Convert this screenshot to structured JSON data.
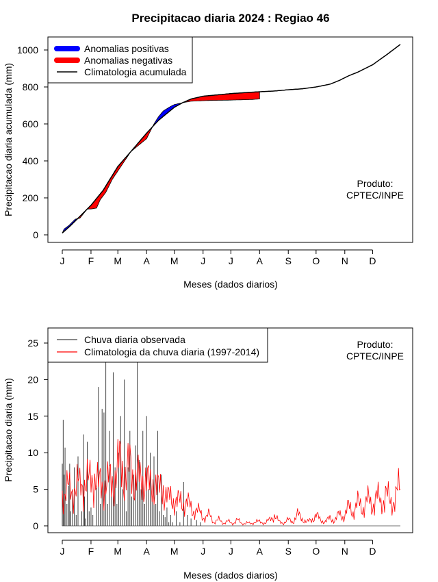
{
  "chart_data": [
    {
      "type": "area",
      "title": "Precipitacao diaria 2024 : Regiao 46",
      "xlabel": "Meses (dados diarios)",
      "ylabel": "Precipitacao diaria acumulada (mm)",
      "x_ticks": [
        "J",
        "F",
        "M",
        "A",
        "M",
        "J",
        "J",
        "A",
        "S",
        "O",
        "N",
        "D"
      ],
      "x_tick_days": [
        1,
        32,
        61,
        92,
        122,
        153,
        183,
        214,
        245,
        275,
        306,
        336
      ],
      "ylim": [
        0,
        1000
      ],
      "y_ticks": [
        0,
        200,
        400,
        600,
        800,
        1000
      ],
      "xlim_days": [
        1,
        366
      ],
      "legend": {
        "position": "top-left",
        "positive": "Anomalias positivas",
        "negative": "Anomalias negativas",
        "climatology": "Climatologia acumulada"
      },
      "colors": {
        "positive": "#0000ff",
        "negative": "#ff0000",
        "climatology": "#000000"
      },
      "product_label": [
        "Produto:",
        "CPTEC/INPE"
      ],
      "climatology_points": {
        "day": [
          1,
          10,
          20,
          32,
          45,
          61,
          75,
          92,
          105,
          122,
          131,
          140,
          153,
          170,
          183,
          200,
          214,
          230,
          245,
          260,
          275,
          290,
          300,
          310,
          320,
          336,
          350,
          366
        ],
        "value": [
          10,
          50,
          100,
          160,
          240,
          370,
          450,
          550,
          620,
          690,
          715,
          735,
          750,
          758,
          764,
          770,
          774,
          778,
          785,
          790,
          800,
          815,
          835,
          860,
          880,
          920,
          970,
          1030
        ]
      },
      "observed_points": {
        "day": [
          1,
          3,
          8,
          15,
          20,
          28,
          32,
          38,
          42,
          48,
          55,
          61,
          75,
          92,
          95,
          100,
          105,
          110,
          118,
          122,
          131,
          140,
          150,
          160,
          175,
          190,
          205,
          214
        ],
        "value": [
          10,
          32,
          50,
          85,
          90,
          140,
          140,
          145,
          190,
          230,
          300,
          345,
          450,
          520,
          550,
          600,
          640,
          670,
          695,
          705,
          715,
          723,
          725,
          727,
          728,
          730,
          732,
          735
        ]
      }
    },
    {
      "type": "bar",
      "title": "",
      "xlabel": "Meses (dados diarios)",
      "ylabel": "Precipitacao diaria (mm)",
      "x_ticks": [
        "J",
        "F",
        "M",
        "A",
        "M",
        "J",
        "J",
        "A",
        "S",
        "O",
        "N",
        "D"
      ],
      "x_tick_days": [
        1,
        32,
        61,
        92,
        122,
        153,
        183,
        214,
        245,
        275,
        306,
        336
      ],
      "ylim": [
        0,
        25
      ],
      "y_ticks": [
        0,
        5,
        10,
        15,
        20,
        25
      ],
      "legend": {
        "position": "top-left",
        "observed": "Chuva diaria observada",
        "climatology": "Climatologia da chuva diaria (1997-2014)"
      },
      "colors": {
        "observed": "#404040",
        "climatology": "#ff0000"
      },
      "product_label": [
        "Produto:",
        "CPTEC/INPE"
      ],
      "observed_spikes": {
        "day": [
          1,
          2,
          3,
          4,
          6,
          8,
          9,
          10,
          12,
          14,
          16,
          18,
          22,
          24,
          25,
          26,
          28,
          30,
          32,
          34,
          38,
          40,
          42,
          44,
          46,
          48,
          50,
          52,
          54,
          56,
          58,
          60,
          62,
          64,
          66,
          68,
          70,
          72,
          74,
          76,
          78,
          80,
          82,
          84,
          86,
          88,
          90,
          92,
          94,
          96,
          98,
          100,
          102,
          104,
          106,
          108,
          110,
          112,
          114,
          116,
          118,
          120,
          124,
          128,
          132,
          136,
          140,
          146,
          150
        ],
        "value": [
          8.5,
          14.5,
          7,
          10.7,
          3,
          5.5,
          8.5,
          2,
          5,
          8,
          1.5,
          9.5,
          2,
          12.5,
          4,
          1,
          11.5,
          2,
          2.5,
          1.5,
          5.5,
          19,
          3,
          16,
          15.5,
          26,
          3,
          13,
          4,
          21,
          8,
          3,
          10,
          15,
          5,
          20,
          2,
          8,
          13,
          4,
          7,
          11,
          26,
          9,
          5,
          13,
          3,
          15,
          5,
          10,
          4,
          9.5,
          3,
          13,
          2,
          7,
          1.5,
          1.2,
          2.5,
          0.5,
          1.5,
          0.5,
          2,
          0.5,
          6,
          1.5,
          1,
          0.8,
          0.5
        ]
      },
      "climatology_daily": {
        "day": [
          1,
          5,
          10,
          15,
          20,
          25,
          30,
          35,
          40,
          45,
          50,
          55,
          60,
          65,
          70,
          75,
          80,
          85,
          90,
          95,
          100,
          105,
          110,
          115,
          120,
          125,
          130,
          135,
          140,
          145,
          150,
          155,
          160,
          165,
          170,
          175,
          180,
          185,
          190,
          195,
          200,
          205,
          210,
          215,
          220,
          225,
          230,
          235,
          240,
          245,
          250,
          255,
          260,
          265,
          270,
          275,
          280,
          285,
          290,
          295,
          300,
          305,
          310,
          315,
          320,
          325,
          330,
          335,
          340,
          345,
          350,
          355,
          360,
          366
        ],
        "value": [
          4.5,
          5.5,
          4.2,
          6.0,
          5.0,
          6.5,
          5.5,
          7.5,
          5.0,
          6.0,
          5.5,
          6.5,
          7.0,
          9.0,
          6.5,
          8.0,
          6.5,
          6.0,
          7.0,
          5.0,
          6.5,
          4.5,
          5.5,
          3.5,
          4.0,
          3.0,
          3.5,
          3.0,
          2.5,
          2.0,
          1.8,
          1.0,
          1.5,
          0.5,
          0.8,
          0.4,
          0.6,
          0.3,
          0.8,
          0.3,
          0.4,
          0.3,
          0.6,
          0.5,
          0.4,
          0.8,
          1.5,
          0.5,
          0.4,
          0.8,
          0.6,
          1.5,
          1.0,
          0.5,
          0.8,
          1.5,
          0.7,
          0.6,
          1.0,
          0.8,
          1.5,
          1.3,
          2.5,
          2.0,
          3.0,
          2.5,
          3.5,
          2.8,
          4.0,
          3.0,
          4.5,
          3.0,
          4.0,
          5.0
        ]
      }
    }
  ]
}
